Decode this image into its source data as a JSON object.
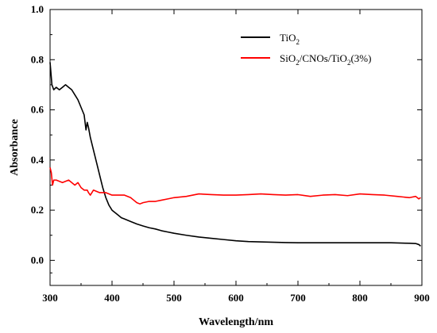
{
  "chart_data": {
    "type": "line",
    "xlabel": "Wavelength/nm",
    "ylabel": "Absorbance",
    "xlim": [
      300,
      900
    ],
    "ylim": [
      -0.1,
      1.0
    ],
    "xticks": [
      300,
      400,
      500,
      600,
      700,
      800,
      900
    ],
    "yticks": [
      0.0,
      0.2,
      0.4,
      0.6,
      0.8,
      1.0
    ],
    "xtick_labels": [
      "300",
      "400",
      "500",
      "600",
      "700",
      "800",
      "900"
    ],
    "ytick_labels": [
      "0.0",
      "0.2",
      "0.4",
      "0.6",
      "0.8",
      "1.0"
    ],
    "grid": false,
    "legend_position": "top-right",
    "series": [
      {
        "name": "TiO2",
        "legend_main": "TiO",
        "legend_sub": "2",
        "color": "#000000",
        "x": [
          300,
          303,
          306,
          310,
          315,
          320,
          325,
          330,
          335,
          340,
          345,
          350,
          355,
          358,
          360,
          362,
          365,
          370,
          375,
          380,
          385,
          390,
          395,
          400,
          405,
          410,
          415,
          420,
          430,
          440,
          450,
          460,
          470,
          480,
          490,
          500,
          520,
          540,
          560,
          580,
          600,
          620,
          650,
          680,
          700,
          750,
          800,
          850,
          880,
          890,
          895,
          898
        ],
        "y": [
          0.79,
          0.7,
          0.68,
          0.69,
          0.68,
          0.69,
          0.7,
          0.69,
          0.68,
          0.66,
          0.64,
          0.61,
          0.58,
          0.52,
          0.55,
          0.53,
          0.49,
          0.44,
          0.39,
          0.34,
          0.29,
          0.25,
          0.22,
          0.2,
          0.19,
          0.18,
          0.17,
          0.165,
          0.155,
          0.145,
          0.137,
          0.13,
          0.125,
          0.118,
          0.113,
          0.108,
          0.1,
          0.093,
          0.088,
          0.083,
          0.078,
          0.075,
          0.073,
          0.071,
          0.07,
          0.07,
          0.07,
          0.07,
          0.068,
          0.067,
          0.063,
          0.057
        ]
      },
      {
        "name": "SiO2/CNOs/TiO2(3%)",
        "legend_parts": [
          "SiO",
          "2",
          "/CNOs/TiO",
          "2",
          "(3%)"
        ],
        "color": "#ff0000",
        "x": [
          300,
          302,
          304,
          306,
          310,
          320,
          330,
          340,
          345,
          350,
          355,
          360,
          362,
          365,
          370,
          380,
          390,
          400,
          410,
          420,
          430,
          435,
          440,
          445,
          450,
          460,
          470,
          480,
          490,
          500,
          520,
          540,
          560,
          580,
          600,
          620,
          640,
          660,
          680,
          700,
          720,
          740,
          760,
          780,
          800,
          820,
          840,
          860,
          880,
          890,
          895,
          898
        ],
        "y": [
          0.37,
          0.35,
          0.3,
          0.32,
          0.32,
          0.31,
          0.32,
          0.3,
          0.31,
          0.29,
          0.28,
          0.28,
          0.27,
          0.26,
          0.28,
          0.27,
          0.27,
          0.26,
          0.26,
          0.26,
          0.25,
          0.24,
          0.23,
          0.225,
          0.23,
          0.235,
          0.235,
          0.24,
          0.245,
          0.25,
          0.255,
          0.265,
          0.262,
          0.26,
          0.26,
          0.262,
          0.265,
          0.262,
          0.26,
          0.262,
          0.255,
          0.26,
          0.262,
          0.258,
          0.265,
          0.262,
          0.26,
          0.255,
          0.25,
          0.255,
          0.245,
          0.25
        ]
      }
    ]
  }
}
